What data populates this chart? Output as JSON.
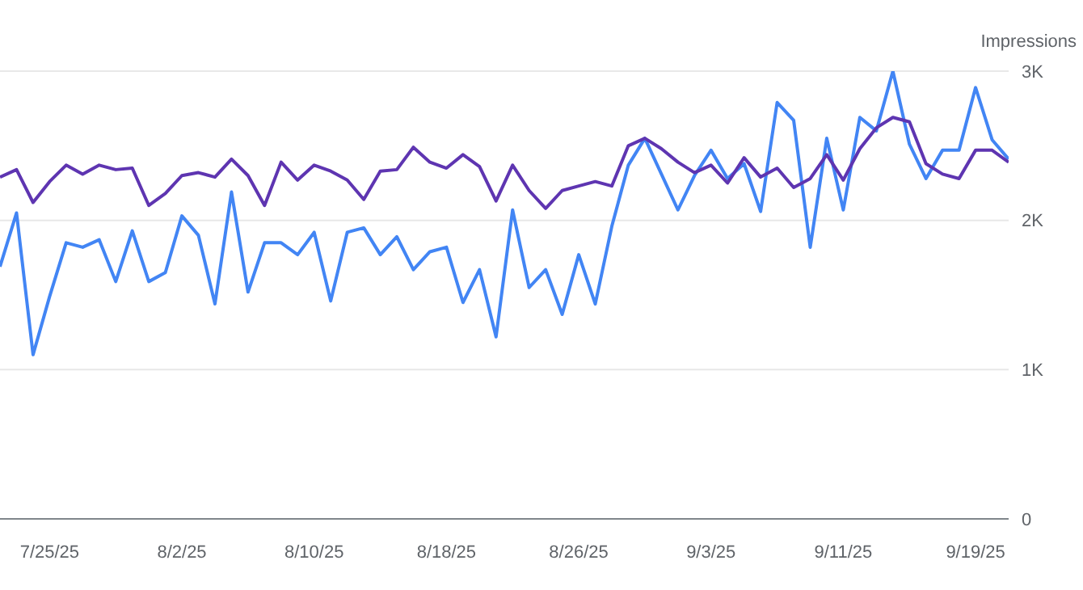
{
  "chart_data": {
    "type": "line",
    "ylabel": "Impressions",
    "x": [
      "--07-22",
      "--07-23",
      "--07-24",
      "--07-25",
      "--07-26",
      "--07-27",
      "--07-28",
      "--07-29",
      "--07-30",
      "--07-31",
      "--08-01",
      "--08-02",
      "--08-03",
      "--08-04",
      "--08-05",
      "--08-06",
      "--08-07",
      "--08-08",
      "--08-09",
      "--08-10",
      "--08-11",
      "--08-12",
      "--08-13",
      "--08-14",
      "--08-15",
      "--08-16",
      "--08-17",
      "--08-18",
      "--08-19",
      "--08-20",
      "--08-21",
      "--08-22",
      "--08-23",
      "--08-24",
      "--08-25",
      "--08-26",
      "--08-27",
      "--08-28",
      "--08-29",
      "--08-30",
      "--08-31",
      "--09-01",
      "--09-02",
      "--09-03",
      "--09-04",
      "--09-05",
      "--09-06",
      "--09-07",
      "--09-08",
      "--09-09",
      "--09-10",
      "--09-11",
      "--09-12",
      "--09-13",
      "--09-14",
      "--09-15",
      "--09-16",
      "--09-17",
      "--09-18",
      "--09-19",
      "--09-20",
      "--09-21"
    ],
    "series": [
      {
        "color": "#4285f4",
        "values": [
          1690,
          2050,
          1100,
          1490,
          1850,
          1820,
          1870,
          1590,
          1930,
          1590,
          1650,
          2030,
          1900,
          1440,
          2190,
          1520,
          1850,
          1850,
          1770,
          1920,
          1460,
          1920,
          1950,
          1770,
          1890,
          1670,
          1790,
          1820,
          1450,
          1670,
          1220,
          2070,
          1550,
          1670,
          1370,
          1770,
          1440,
          1960,
          2370,
          2550,
          2310,
          2070,
          2300,
          2470,
          2280,
          2380,
          2060,
          2790,
          2670,
          1820,
          2550,
          2070,
          2690,
          2600,
          3000,
          2510,
          2280,
          2470,
          2470,
          2890,
          2540,
          2410
        ]
      },
      {
        "color": "#5e35b1",
        "values": [
          2290,
          2340,
          2120,
          2260,
          2370,
          2310,
          2370,
          2340,
          2350,
          2100,
          2180,
          2300,
          2320,
          2290,
          2410,
          2300,
          2100,
          2390,
          2270,
          2370,
          2330,
          2270,
          2140,
          2330,
          2340,
          2490,
          2390,
          2350,
          2440,
          2360,
          2130,
          2370,
          2200,
          2080,
          2200,
          2230,
          2260,
          2230,
          2500,
          2550,
          2480,
          2390,
          2320,
          2370,
          2250,
          2420,
          2290,
          2350,
          2220,
          2280,
          2440,
          2270,
          2480,
          2620,
          2690,
          2660,
          2380,
          2310,
          2280,
          2470,
          2470,
          2390
        ]
      }
    ],
    "xlim": [
      "--07-22",
      "--09-21"
    ],
    "xticks": [
      {
        "value": "--07-25",
        "label": "7/25/25"
      },
      {
        "value": "--08-02",
        "label": "8/2/25"
      },
      {
        "value": "--08-10",
        "label": "8/10/25"
      },
      {
        "value": "--08-18",
        "label": "8/18/25"
      },
      {
        "value": "--08-26",
        "label": "8/26/25"
      },
      {
        "value": "--09-03",
        "label": "9/3/25"
      },
      {
        "value": "--09-11",
        "label": "9/11/25"
      },
      {
        "value": "--09-19",
        "label": "9/19/25"
      }
    ],
    "ylim": [
      0,
      3000
    ],
    "yticks": [
      {
        "value": 0,
        "label": "0"
      },
      {
        "value": 1000,
        "label": "1K"
      },
      {
        "value": 2000,
        "label": "2K"
      },
      {
        "value": 3000,
        "label": "3K"
      }
    ],
    "grid": "y",
    "legend": false,
    "marker": "none"
  }
}
